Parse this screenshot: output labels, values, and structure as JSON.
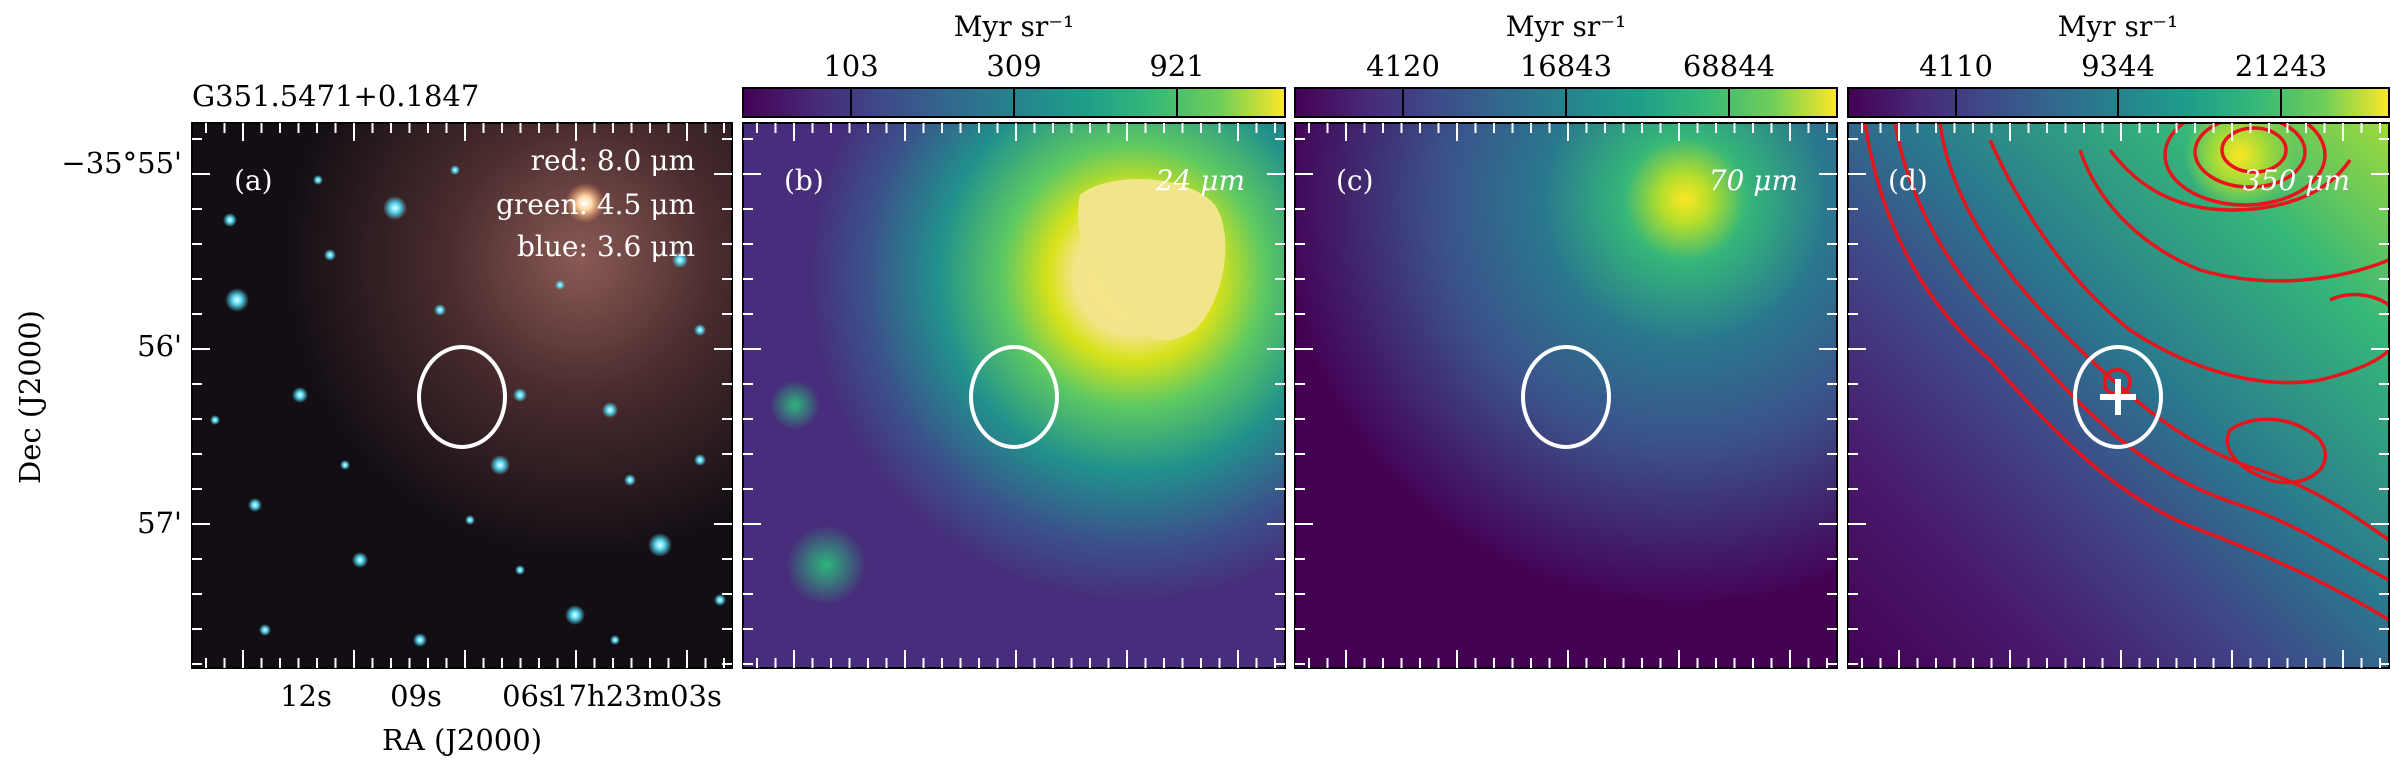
{
  "figure": {
    "source_name": "G351.5471+0.1847",
    "axes": {
      "ylabel": "Dec (J2000)",
      "xlabel": "RA (J2000)",
      "yticks": [
        "−35°55'",
        "56'",
        "57'"
      ],
      "xticks": [
        "12s",
        "09s",
        "06s",
        "17h23m03s"
      ]
    },
    "panels": [
      {
        "id": "a",
        "label": "(a)",
        "legend": [
          "red: 8.0 μm",
          "green: 4.5 μm",
          "blue: 3.6 μm"
        ]
      },
      {
        "id": "b",
        "label": "(b)",
        "band": "24 μm",
        "colorbar": {
          "unit": "Myr sr⁻¹",
          "ticks": [
            "103",
            "309",
            "921"
          ]
        }
      },
      {
        "id": "c",
        "label": "(c)",
        "band": "70 μm",
        "colorbar": {
          "unit": "Myr sr⁻¹",
          "ticks": [
            "4120",
            "16843",
            "68844"
          ]
        }
      },
      {
        "id": "d",
        "label": "(d)",
        "band": "350 μm",
        "colorbar": {
          "unit": "Myr sr⁻¹",
          "ticks": [
            "4110",
            "9344",
            "21243"
          ]
        }
      }
    ],
    "colors": {
      "contour": "#e8141c",
      "marker": "#ffffff",
      "viridis_low": "#440154",
      "viridis_high": "#fde725"
    }
  }
}
